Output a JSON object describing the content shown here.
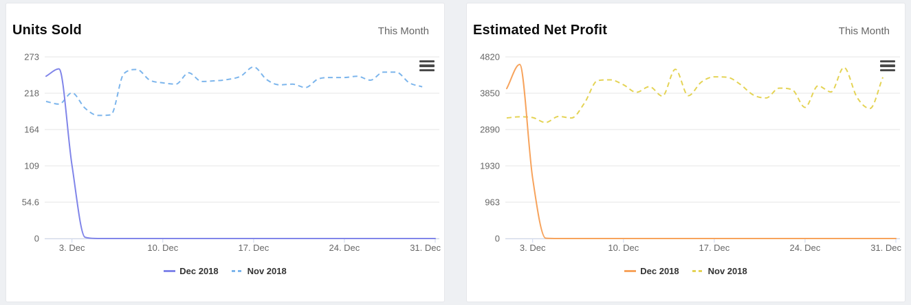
{
  "page": {
    "background": "#eef0f3"
  },
  "colors": {
    "card_bg": "#ffffff",
    "card_border": "#e5e7ea",
    "grid_line": "#e6e6e6",
    "axis_line": "#ccd6eb",
    "axis_label": "#666666",
    "legend_text": "#333333",
    "title_text": "#0c0c0c",
    "menu_icon": "#4a4a4a"
  },
  "icons": {
    "chart_menu": "hamburger-icon"
  },
  "chart_data": [
    {
      "type": "line",
      "title": "Units Sold",
      "period_label": "This Month",
      "grid": "horizontal",
      "legend_position": "bottom-center",
      "x_range_days": 31,
      "x_tick_labels": [
        "3. Dec",
        "10. Dec",
        "17. Dec",
        "24. Dec",
        "31. Dec"
      ],
      "x_tick_days": [
        3,
        10,
        17,
        24,
        31
      ],
      "y_max": 273,
      "y_tick_labels": [
        "0",
        "54.6",
        "109",
        "164",
        "218",
        "273"
      ],
      "series": [
        {
          "name": "Dec 2018",
          "color": "#8085e9",
          "dash": "solid",
          "values": [
            244,
            255,
            110,
            2,
            0,
            0,
            0,
            0,
            0,
            0,
            0,
            0,
            0,
            0,
            0,
            0,
            0,
            0,
            0,
            0,
            0,
            0,
            0,
            0,
            0,
            0,
            0,
            0,
            0,
            0,
            0
          ]
        },
        {
          "name": "Nov 2018",
          "color": "#7cb5ec",
          "dash": "dashed",
          "values": [
            206,
            202,
            219,
            196,
            185,
            186,
            248,
            254,
            238,
            234,
            232,
            249,
            236,
            237,
            239,
            244,
            258,
            239,
            231,
            232,
            227,
            240,
            242,
            242,
            244,
            238,
            250,
            250,
            234,
            228
          ]
        }
      ]
    },
    {
      "type": "line",
      "title": "Estimated Net Profit",
      "period_label": "This Month",
      "grid": "horizontal",
      "legend_position": "bottom-center",
      "x_range_days": 31,
      "x_tick_labels": [
        "3. Dec",
        "10. Dec",
        "17. Dec",
        "24. Dec",
        "31. Dec"
      ],
      "x_tick_days": [
        3,
        10,
        17,
        24,
        31
      ],
      "y_max": 4820,
      "y_tick_labels": [
        "0",
        "963",
        "1930",
        "2890",
        "3850",
        "4820"
      ],
      "series": [
        {
          "name": "Dec 2018",
          "color": "#f7a35c",
          "dash": "solid",
          "values": [
            3980,
            4620,
            1600,
            10,
            0,
            0,
            0,
            0,
            0,
            0,
            0,
            0,
            0,
            0,
            0,
            0,
            0,
            0,
            0,
            0,
            0,
            0,
            0,
            0,
            0,
            0,
            0,
            0,
            0,
            0,
            0
          ]
        },
        {
          "name": "Nov 2018",
          "color": "#e4d354",
          "dash": "dashed",
          "values": [
            3200,
            3230,
            3210,
            3080,
            3240,
            3200,
            3600,
            4190,
            4210,
            4080,
            3880,
            4030,
            3780,
            4490,
            3790,
            4150,
            4290,
            4280,
            4090,
            3810,
            3730,
            3990,
            3950,
            3480,
            4050,
            3890,
            4540,
            3750,
            3450,
            4280
          ]
        }
      ]
    }
  ]
}
